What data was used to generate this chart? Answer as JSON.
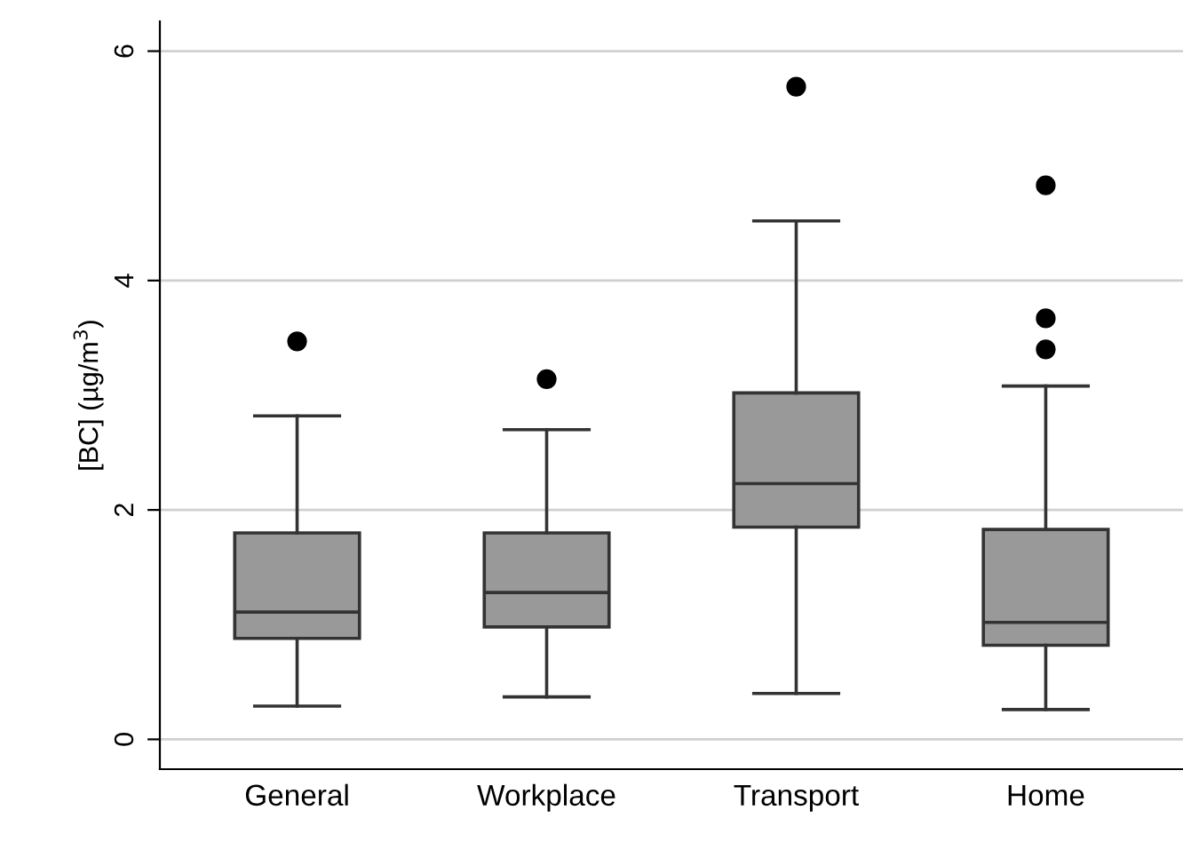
{
  "chart_data": {
    "type": "box",
    "ylabel": "[BC] (µg/m$^{3}$)",
    "categories": [
      "General",
      "Workplace",
      "Transport",
      "Home"
    ],
    "boxes": [
      {
        "low": 0.29,
        "q1": 0.88,
        "median": 1.11,
        "q3": 1.8,
        "high": 2.82,
        "outliers": [
          3.47
        ]
      },
      {
        "low": 0.37,
        "q1": 0.98,
        "median": 1.28,
        "q3": 1.8,
        "high": 2.7,
        "outliers": [
          3.14
        ]
      },
      {
        "low": 0.4,
        "q1": 1.85,
        "median": 2.23,
        "q3": 3.02,
        "high": 4.52,
        "outliers": [
          5.69
        ]
      },
      {
        "low": 0.26,
        "q1": 0.82,
        "median": 1.02,
        "q3": 1.83,
        "high": 3.08,
        "outliers": [
          4.83,
          3.67,
          3.4
        ]
      }
    ],
    "color": "#999999",
    "ylim": [
      -0.26,
      6.26
    ],
    "yticks": [
      0,
      2,
      4,
      6
    ],
    "grid": "y"
  }
}
